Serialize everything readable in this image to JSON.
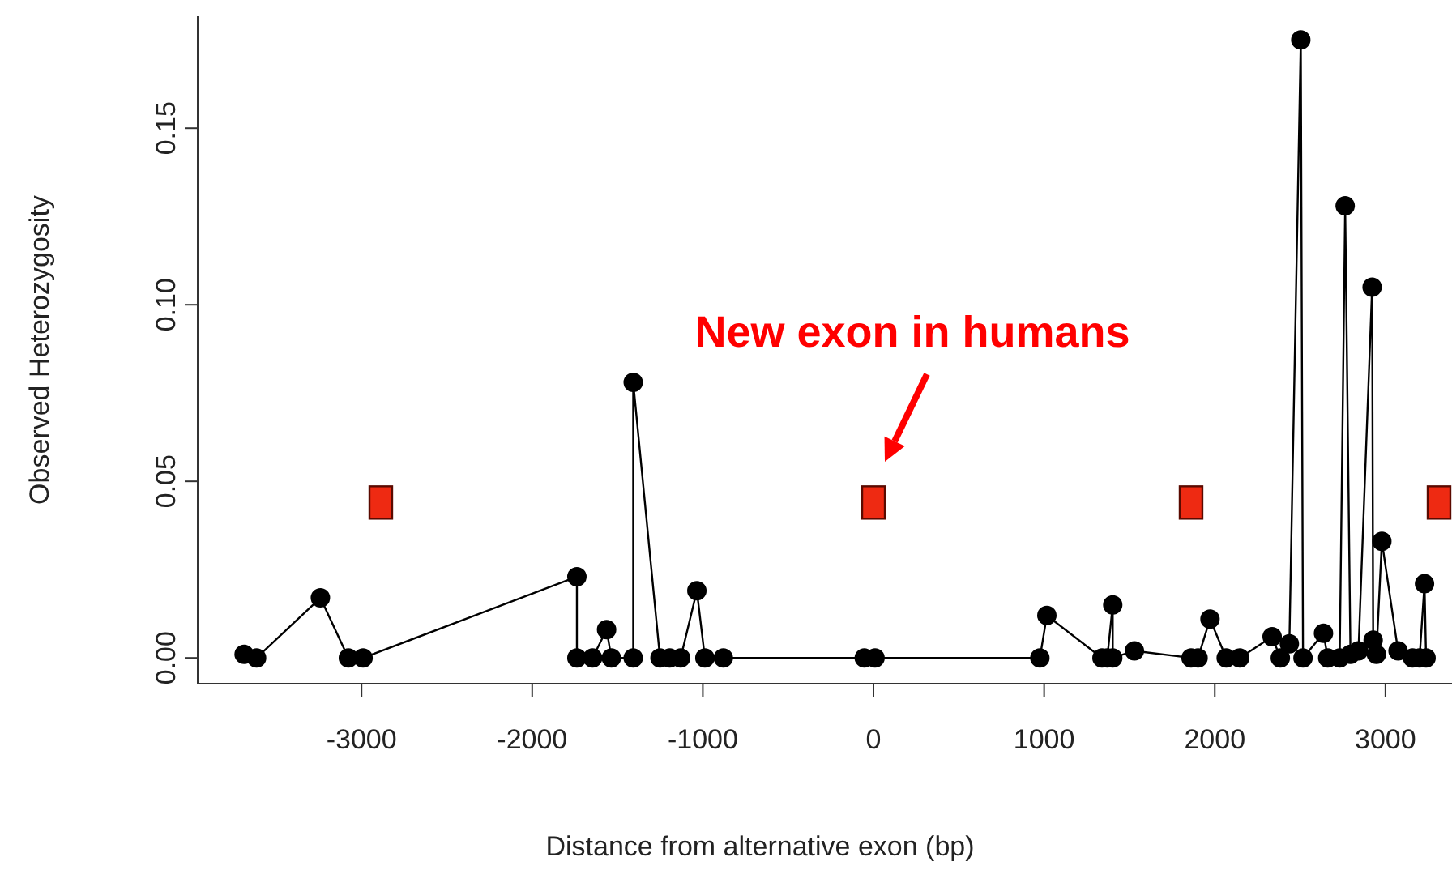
{
  "chart_data": {
    "type": "line",
    "xlabel": "Distance from alternative exon (bp)",
    "ylabel": "Observed Heterozygosity",
    "xlim": [
      -3960,
      3390
    ],
    "ylim": [
      -0.0073,
      0.1817
    ],
    "xticks": [
      -3000,
      -2000,
      -1000,
      0,
      1000,
      2000,
      3000
    ],
    "yticks": [
      {
        "value": 0,
        "label": "0.00"
      },
      {
        "value": 0.05,
        "label": "0.05"
      },
      {
        "value": 0.1,
        "label": "0.10"
      },
      {
        "value": 0.15,
        "label": "0.15"
      }
    ],
    "marker": "circle",
    "line_style": "solid",
    "series": [
      {
        "color": "#000000",
        "x": [
          -3688,
          -3615,
          -3241,
          -3077,
          -2991,
          -1738,
          -1738,
          -1646,
          -1564,
          -1536,
          -1408,
          -1408,
          -1251,
          -1194,
          -1130,
          -1035,
          -988,
          -880,
          -54,
          9,
          975,
          1016,
          1339,
          1370,
          1402,
          1402,
          1529,
          1861,
          1902,
          1972,
          2067,
          2146,
          2336,
          2384,
          2437,
          2504,
          2517,
          2637,
          2662,
          2732,
          2764,
          2795,
          2842,
          2922,
          2928,
          2947,
          2979,
          3074,
          3159,
          3200,
          3229,
          3238
        ],
        "values": [
          0.001,
          0,
          0.017,
          0,
          0,
          0.023,
          0,
          0,
          0.008,
          0,
          0,
          0.078,
          0,
          0,
          0,
          0.019,
          0,
          0,
          0,
          0,
          0,
          0.012,
          0,
          0,
          0.015,
          0,
          0.002,
          0,
          0,
          0.011,
          0,
          0,
          0.006,
          0,
          0.004,
          0.175,
          0,
          0.007,
          0,
          0,
          0.128,
          0.001,
          0.002,
          0.105,
          0.005,
          0.001,
          0.033,
          0.002,
          0,
          0,
          0.021,
          0
        ]
      },
      {
        "type": "scatter",
        "color": "#ee2a12",
        "marker": "square",
        "x": [
          -2887,
          0,
          1861,
          3314
        ],
        "values": [
          0.044,
          0.044,
          0.044,
          0.044
        ]
      }
    ],
    "annotations": [
      "New exon in humans"
    ]
  }
}
